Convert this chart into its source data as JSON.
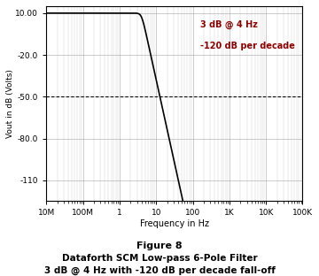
{
  "title_fig": "Figure 8",
  "title_line1": "Dataforth SCM Low-pass 6-Pole Filter",
  "title_line2": "3 dB @ 4 Hz with -120 dB per decade fall-off",
  "xlabel": "Frequency in Hz",
  "ylabel": "Vout in dB (Volts)",
  "annotation_line1": "3 dB @ 4 Hz",
  "annotation_line2": "-120 dB per decade",
  "fc": 4.0,
  "poles": 6,
  "gain_db": 10.0,
  "ylim": [
    -125,
    15
  ],
  "yticks": [
    10.0,
    -20.0,
    -50.0,
    -80.0,
    -110.0
  ],
  "ytick_labels": [
    "10.00",
    "-20.0",
    "-50.0",
    "-80.0",
    "-110"
  ],
  "xmin_val": 0.01,
  "xmax_val": 100000.0,
  "xtick_positions": [
    0.01,
    0.1,
    1.0,
    10.0,
    100.0,
    1000.0,
    10000.0,
    100000.0
  ],
  "xtick_labels": [
    "10M",
    "100M",
    "1",
    "10",
    "100",
    "1K",
    "10K",
    "100K"
  ],
  "background_color": "#ffffff",
  "line_color": "#000000",
  "grid_color": "#999999",
  "annotation_color": "#8B0000",
  "hline_color": "#000000",
  "hline_y": -50.0,
  "fig_caption_fontsize": 8,
  "subtitle_fontsize": 7.5,
  "annot_fontsize": 7
}
